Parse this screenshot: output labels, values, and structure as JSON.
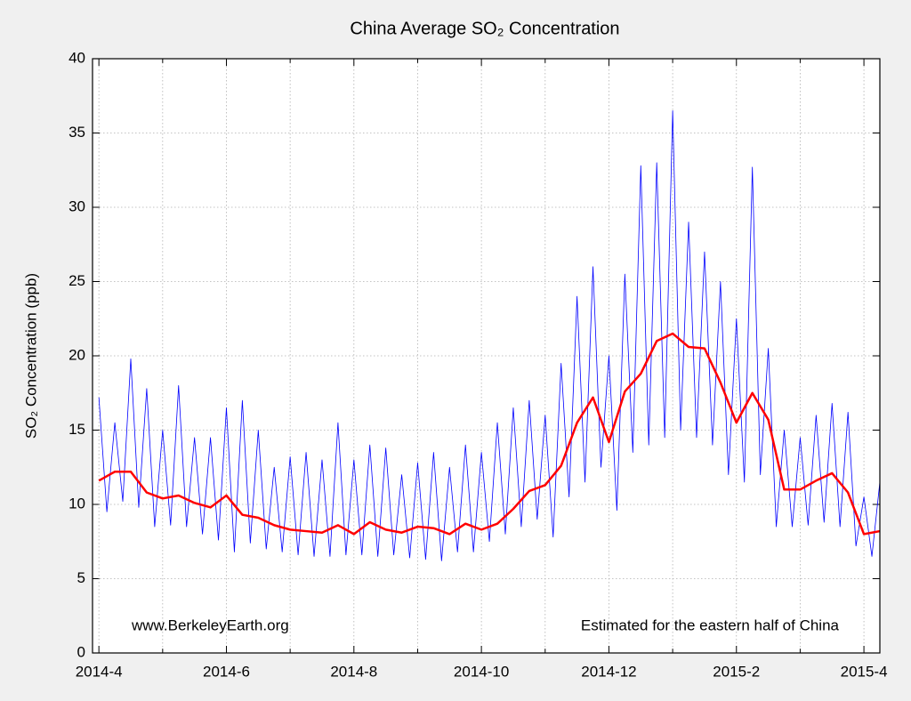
{
  "chart_data": {
    "type": "line",
    "title": "China Average SO₂ Concentration",
    "y_label": "SO₂ Concentration (ppb)",
    "annotations": [
      "www.BerkeleyEarth.org",
      "Estimated for the eastern half of China"
    ],
    "xlim": [
      -0.1,
      12.25
    ],
    "ylim": [
      0,
      40
    ],
    "xticks": [
      {
        "value": 0,
        "label": "2014-4"
      },
      {
        "value": 2,
        "label": "2014-6"
      },
      {
        "value": 4,
        "label": "2014-8"
      },
      {
        "value": 6,
        "label": "2014-10"
      },
      {
        "value": 8,
        "label": "2014-12"
      },
      {
        "value": 10,
        "label": "2015-2"
      },
      {
        "value": 12,
        "label": "2015-4"
      }
    ],
    "xminorticks": [
      1,
      3,
      5,
      7,
      9,
      11
    ],
    "yticks": [
      0,
      5,
      10,
      15,
      20,
      25,
      30,
      35,
      40
    ],
    "grid": true,
    "series": [
      {
        "color": "#0000ff",
        "line_width": 0.8,
        "x": [
          0,
          0.125,
          0.25,
          0.375,
          0.5,
          0.625,
          0.75,
          0.875,
          1,
          1.125,
          1.25,
          1.375,
          1.5,
          1.625,
          1.75,
          1.875,
          2,
          2.125,
          2.25,
          2.375,
          2.5,
          2.625,
          2.75,
          2.875,
          3,
          3.125,
          3.25,
          3.375,
          3.5,
          3.625,
          3.75,
          3.875,
          4,
          4.125,
          4.25,
          4.375,
          4.5,
          4.625,
          4.75,
          4.875,
          5,
          5.125,
          5.25,
          5.375,
          5.5,
          5.625,
          5.75,
          5.875,
          6,
          6.125,
          6.25,
          6.375,
          6.5,
          6.625,
          6.75,
          6.875,
          7,
          7.125,
          7.25,
          7.375,
          7.5,
          7.625,
          7.75,
          7.875,
          8,
          8.125,
          8.25,
          8.375,
          8.5,
          8.625,
          8.75,
          8.875,
          9,
          9.125,
          9.25,
          9.375,
          9.5,
          9.625,
          9.75,
          9.875,
          10,
          10.125,
          10.25,
          10.375,
          10.5,
          10.625,
          10.75,
          10.875,
          11,
          11.125,
          11.25,
          11.375,
          11.5,
          11.625,
          11.75,
          11.875,
          12,
          12.125,
          12.25
        ],
        "values": [
          17.2,
          9.5,
          15.5,
          10.2,
          19.8,
          9.8,
          17.8,
          8.5,
          15.0,
          8.6,
          18.0,
          8.5,
          14.5,
          8.0,
          14.5,
          7.6,
          16.5,
          6.8,
          17.0,
          7.4,
          15.0,
          7.0,
          12.5,
          6.8,
          13.2,
          6.6,
          13.5,
          6.5,
          13.0,
          6.5,
          15.5,
          6.6,
          13.0,
          6.6,
          14.0,
          6.5,
          13.8,
          6.6,
          12.0,
          6.4,
          12.8,
          6.3,
          13.5,
          6.2,
          12.5,
          6.8,
          14.0,
          6.8,
          13.5,
          7.5,
          15.5,
          8.0,
          16.5,
          8.5,
          17.0,
          9.0,
          16.0,
          7.8,
          19.5,
          10.5,
          24.0,
          11.5,
          26.0,
          12.5,
          20.0,
          9.6,
          25.5,
          13.5,
          32.8,
          14.0,
          33.0,
          14.5,
          36.5,
          15.0,
          29.0,
          14.5,
          27.0,
          14.0,
          25.0,
          12.0,
          22.5,
          11.5,
          32.7,
          12.0,
          20.5,
          8.5,
          15.0,
          8.5,
          14.5,
          8.6,
          16.0,
          8.8,
          16.8,
          8.5,
          16.2,
          7.2,
          10.5,
          6.5,
          11.5
        ]
      },
      {
        "color": "#ff0000",
        "line_width": 2.5,
        "x": [
          0,
          0.25,
          0.5,
          0.75,
          1,
          1.25,
          1.5,
          1.75,
          2,
          2.25,
          2.5,
          2.75,
          3,
          3.25,
          3.5,
          3.75,
          4,
          4.25,
          4.5,
          4.75,
          5,
          5.25,
          5.5,
          5.75,
          6,
          6.25,
          6.5,
          6.75,
          7,
          7.25,
          7.5,
          7.75,
          8,
          8.25,
          8.5,
          8.75,
          9,
          9.25,
          9.5,
          9.75,
          10,
          10.25,
          10.5,
          10.75,
          11,
          11.25,
          11.5,
          11.75,
          12,
          12.25
        ],
        "values": [
          11.6,
          12.2,
          12.2,
          10.8,
          10.4,
          10.6,
          10.1,
          9.8,
          10.6,
          9.3,
          9.1,
          8.6,
          8.3,
          8.2,
          8.1,
          8.6,
          8.0,
          8.8,
          8.3,
          8.1,
          8.5,
          8.4,
          8.0,
          8.7,
          8.3,
          8.7,
          9.7,
          10.9,
          11.3,
          12.6,
          15.5,
          17.2,
          14.2,
          17.6,
          18.8,
          21,
          21.5,
          20.6,
          20.5,
          18.2,
          15.5,
          17.5,
          15.7,
          11.0,
          11.0,
          11.6,
          12.1,
          10.8,
          8.0,
          8.2
        ]
      }
    ]
  }
}
